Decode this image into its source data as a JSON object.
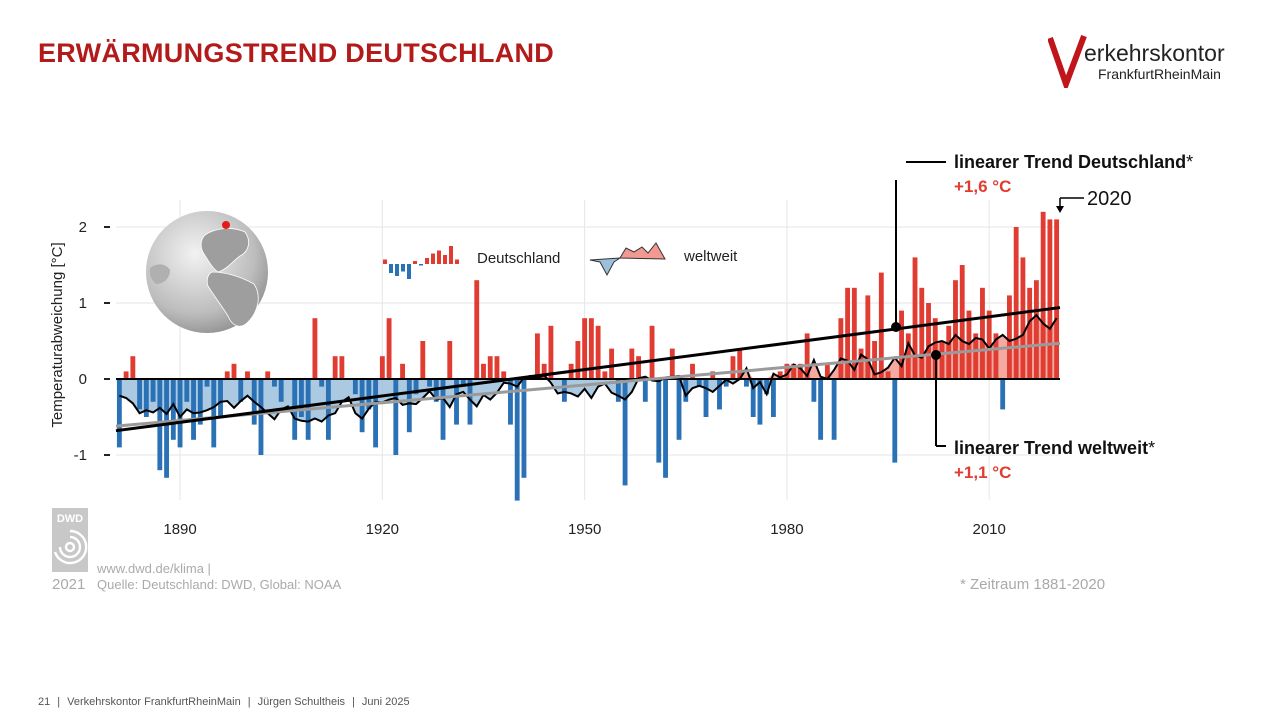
{
  "slide": {
    "title": "ERWÄRMUNGSTREND DEUTSCHLAND",
    "footer": {
      "page": "21",
      "org": "Verkehrskontor FrankfurtRheinMain",
      "author": "Jürgen Schultheis",
      "date": "Juni 2025"
    }
  },
  "logo": {
    "name": "erkehrskontor",
    "sub": "FrankfurtRheinMain",
    "color": "#c0161b"
  },
  "dwd": {
    "badge": "DWD",
    "year": "2021",
    "url": "www.dwd.de/klima |",
    "source": "Quelle: Deutschland: DWD, Global: NOAA"
  },
  "chart_data": {
    "type": "bar",
    "title": "",
    "ylabel": "Temperaturabweichung [°C]",
    "xlabel": "",
    "ylim": [
      -1.6,
      2.3
    ],
    "yticks": [
      "2",
      "1",
      "0",
      "-1"
    ],
    "ytick_values": [
      2,
      1,
      0,
      -1
    ],
    "xticks": [
      "1890",
      "1920",
      "1950",
      "1980",
      "2010"
    ],
    "xtick_values": [
      1890,
      1920,
      1950,
      1980,
      2010
    ],
    "year_start": 1881,
    "year_end": 2020,
    "colors": {
      "positive": "#e03c31",
      "negative": "#2a72b5",
      "global_pos": "#f29a91",
      "global_neg": "#9cbfdc",
      "trend_de": "#000000",
      "trend_global": "#9a9a9a",
      "accent": "#e03c31"
    },
    "legend": {
      "germany": "Deutschland",
      "global": "weltweit"
    },
    "annotations": {
      "trend_de_label": "linearer Trend Deutschland",
      "trend_de_value": "+1,6 °C",
      "trend_global_label": "linearer Trend weltweit",
      "trend_global_value": "+1,1 °C",
      "asterisk": "*",
      "last_year": "2020",
      "period_note": "* Zeitraum 1881-2020"
    },
    "series": [
      {
        "name": "Deutschland",
        "values": [
          -0.9,
          0.1,
          0.3,
          -0.4,
          -0.5,
          -0.3,
          -1.2,
          -1.3,
          -0.8,
          -0.9,
          -0.3,
          -0.8,
          -0.6,
          -0.1,
          -0.9,
          -0.5,
          0.1,
          0.2,
          -0.3,
          0.1,
          -0.6,
          -1.0,
          0.1,
          -0.1,
          -0.3,
          0.0,
          -0.8,
          -0.5,
          -0.8,
          0.8,
          -0.1,
          -0.8,
          0.3,
          0.3,
          0.0,
          -0.2,
          -0.7,
          -0.4,
          -0.9,
          0.3,
          0.8,
          -1.0,
          0.2,
          -0.7,
          -0.2,
          0.5,
          -0.1,
          -0.3,
          -0.8,
          0.5,
          -0.6,
          -0.1,
          -0.6,
          1.3,
          0.2,
          0.3,
          0.3,
          0.1,
          -0.6,
          -1.6,
          -1.3,
          0.0,
          0.6,
          0.2,
          0.7,
          0.0,
          -0.3,
          0.2,
          0.5,
          0.8,
          0.8,
          0.7,
          0.1,
          0.4,
          -0.3,
          -1.4,
          0.4,
          0.3,
          -0.3,
          0.7,
          -1.1,
          -1.3,
          0.4,
          -0.8,
          -0.3,
          0.2,
          -0.1,
          -0.5,
          0.1,
          -0.4,
          -0.1,
          0.3,
          0.4,
          -0.1,
          -0.5,
          -0.6,
          -0.2,
          -0.5,
          0.1,
          0.2,
          0.2,
          0.2,
          0.6,
          -0.3,
          -0.8,
          0.2,
          -0.8,
          0.8,
          1.2,
          1.2,
          0.4,
          1.1,
          0.5,
          1.4,
          0.1,
          -1.1,
          0.9,
          0.6,
          1.6,
          1.2,
          1.0,
          0.8,
          0.5,
          0.7,
          1.3,
          1.5,
          0.9,
          0.6,
          1.2,
          0.9,
          0.6,
          -0.4,
          1.1,
          2.0,
          1.6,
          1.2,
          1.3,
          2.2,
          2.1,
          2.1
        ]
      },
      {
        "name": "weltweit",
        "values": [
          -0.22,
          -0.25,
          -0.32,
          -0.45,
          -0.41,
          -0.44,
          -0.38,
          -0.46,
          -0.33,
          -0.5,
          -0.4,
          -0.45,
          -0.44,
          -0.41,
          -0.37,
          -0.3,
          -0.29,
          -0.38,
          -0.29,
          -0.22,
          -0.3,
          -0.37,
          -0.45,
          -0.53,
          -0.4,
          -0.36,
          -0.52,
          -0.55,
          -0.56,
          -0.52,
          -0.56,
          -0.48,
          -0.45,
          -0.3,
          -0.24,
          -0.45,
          -0.52,
          -0.39,
          -0.3,
          -0.31,
          -0.27,
          -0.25,
          -0.34,
          -0.32,
          -0.33,
          -0.25,
          -0.16,
          -0.27,
          -0.25,
          -0.37,
          -0.2,
          -0.17,
          -0.27,
          -0.36,
          -0.21,
          -0.27,
          -0.18,
          -0.05,
          -0.06,
          -0.1,
          0.02,
          0.04,
          0.01,
          0.05,
          -0.05,
          -0.19,
          -0.17,
          -0.19,
          -0.23,
          -0.13,
          -0.25,
          -0.1,
          -0.06,
          -0.18,
          -0.22,
          -0.27,
          -0.17,
          0.01,
          0.03,
          -0.02,
          -0.03,
          0.02,
          0.03,
          0.04,
          -0.22,
          -0.12,
          -0.09,
          -0.12,
          -0.17,
          -0.09,
          -0.01,
          -0.06,
          0.0,
          0.14,
          -0.12,
          -0.04,
          -0.2,
          0.07,
          0.02,
          0.06,
          0.19,
          0.14,
          0.04,
          0.25,
          0.03,
          0.0,
          0.12,
          0.27,
          0.24,
          0.12,
          0.32,
          0.26,
          0.06,
          0.09,
          0.15,
          0.28,
          0.17,
          0.47,
          0.31,
          0.28,
          0.43,
          0.48,
          0.5,
          0.46,
          0.58,
          0.5,
          0.46,
          0.54,
          0.52,
          0.4,
          0.52,
          0.58,
          0.5,
          0.53,
          0.58,
          0.76,
          0.84,
          0.73,
          0.66,
          0.8
        ]
      }
    ],
    "trends": [
      {
        "name": "linearer Trend Deutschland",
        "start": -0.68,
        "end": 0.94
      },
      {
        "name": "linearer Trend weltweit",
        "start": -0.62,
        "end": 0.47
      }
    ]
  }
}
